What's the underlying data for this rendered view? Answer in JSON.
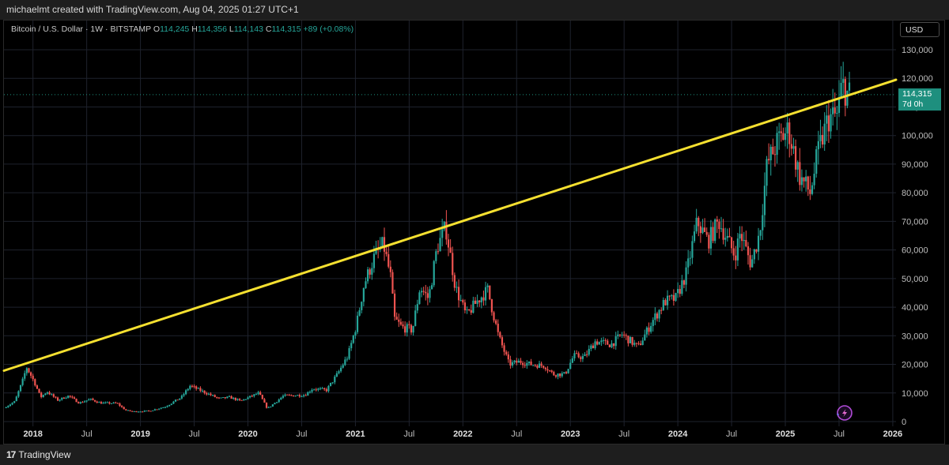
{
  "header": {
    "credit": "michaelmt created with TradingView.com, Aug 04, 2025 01:27 UTC+1"
  },
  "legend": {
    "symbol": "Bitcoin / U.S. Dollar · 1W · BITSTAMP",
    "o_key": "O",
    "o": "114,245",
    "h_key": "H",
    "h": "114,356",
    "l_key": "L",
    "l": "114,143",
    "c_key": "C",
    "c": "114,315",
    "change": "+89 (+0.08%)"
  },
  "currency_button": "USD",
  "price_tag": {
    "price": "114,315",
    "countdown": "7d 0h"
  },
  "footer": {
    "brand": "TradingView"
  },
  "colors": {
    "up": "#26a69a",
    "down": "#ef5350",
    "trendline": "#f5e030",
    "background": "#000000",
    "price_line": "#1e8f7e"
  },
  "chart_data": {
    "type": "candlestick",
    "symbol": "BTCUSD",
    "interval": "1W",
    "x_tick_labels": [
      "2018",
      "Jul",
      "2019",
      "Jul",
      "2020",
      "Jul",
      "2021",
      "Jul",
      "2022",
      "Jul",
      "2023",
      "Jul",
      "2024",
      "Jul",
      "2025",
      "Jul",
      "2026"
    ],
    "y_tick_labels": [
      "0",
      "10,000",
      "20,000",
      "30,000",
      "40,000",
      "50,000",
      "60,000",
      "70,000",
      "80,000",
      "90,000",
      "100,000",
      "110,000",
      "120,000",
      "130,000"
    ],
    "ylim": [
      0,
      130000
    ],
    "xlim": [
      2017.73,
      2026.03
    ],
    "grid": true,
    "last_price": 114315,
    "trendline": {
      "start": {
        "x": 2017.73,
        "y": 17800
      },
      "end": {
        "x": 2026.03,
        "y": 119500
      }
    },
    "price_path": [
      [
        2017.75,
        4800
      ],
      [
        2017.85,
        7000
      ],
      [
        2017.92,
        14000
      ],
      [
        2017.96,
        19000
      ],
      [
        2018.03,
        14000
      ],
      [
        2018.09,
        8500
      ],
      [
        2018.15,
        10500
      ],
      [
        2018.25,
        7500
      ],
      [
        2018.35,
        9000
      ],
      [
        2018.45,
        6500
      ],
      [
        2018.55,
        7800
      ],
      [
        2018.65,
        6500
      ],
      [
        2018.8,
        6400
      ],
      [
        2018.88,
        4000
      ],
      [
        2018.95,
        3500
      ],
      [
        2019.1,
        3700
      ],
      [
        2019.25,
        5200
      ],
      [
        2019.4,
        8500
      ],
      [
        2019.48,
        12500
      ],
      [
        2019.6,
        10500
      ],
      [
        2019.75,
        8000
      ],
      [
        2019.85,
        8500
      ],
      [
        2019.95,
        7200
      ],
      [
        2020.12,
        10000
      ],
      [
        2020.2,
        4500
      ],
      [
        2020.35,
        9000
      ],
      [
        2020.55,
        9300
      ],
      [
        2020.62,
        11500
      ],
      [
        2020.75,
        11000
      ],
      [
        2020.85,
        16500
      ],
      [
        2020.95,
        23000
      ],
      [
        2021.03,
        34000
      ],
      [
        2021.1,
        48000
      ],
      [
        2021.2,
        58000
      ],
      [
        2021.28,
        62000
      ],
      [
        2021.35,
        50000
      ],
      [
        2021.38,
        36000
      ],
      [
        2021.45,
        33000
      ],
      [
        2021.55,
        32000
      ],
      [
        2021.62,
        47000
      ],
      [
        2021.7,
        43000
      ],
      [
        2021.78,
        61000
      ],
      [
        2021.86,
        68000
      ],
      [
        2021.95,
        47000
      ],
      [
        2022.05,
        37000
      ],
      [
        2022.15,
        42000
      ],
      [
        2022.25,
        46000
      ],
      [
        2022.35,
        30000
      ],
      [
        2022.45,
        20000
      ],
      [
        2022.55,
        21000
      ],
      [
        2022.65,
        20000
      ],
      [
        2022.78,
        19500
      ],
      [
        2022.86,
        16500
      ],
      [
        2022.97,
        16600
      ],
      [
        2023.05,
        23000
      ],
      [
        2023.15,
        22500
      ],
      [
        2023.25,
        28000
      ],
      [
        2023.4,
        27000
      ],
      [
        2023.5,
        30500
      ],
      [
        2023.65,
        26000
      ],
      [
        2023.78,
        35000
      ],
      [
        2023.9,
        42000
      ],
      [
        2024.0,
        43000
      ],
      [
        2024.1,
        52000
      ],
      [
        2024.2,
        70000
      ],
      [
        2024.3,
        63000
      ],
      [
        2024.4,
        70000
      ],
      [
        2024.55,
        58000
      ],
      [
        2024.6,
        66000
      ],
      [
        2024.7,
        55000
      ],
      [
        2024.78,
        66000
      ],
      [
        2024.85,
        90000
      ],
      [
        2024.95,
        98000
      ],
      [
        2025.05,
        102000
      ],
      [
        2025.15,
        86000
      ],
      [
        2025.25,
        80000
      ],
      [
        2025.33,
        95000
      ],
      [
        2025.42,
        106000
      ],
      [
        2025.5,
        107000
      ],
      [
        2025.55,
        118000
      ],
      [
        2025.6,
        114315
      ]
    ]
  }
}
